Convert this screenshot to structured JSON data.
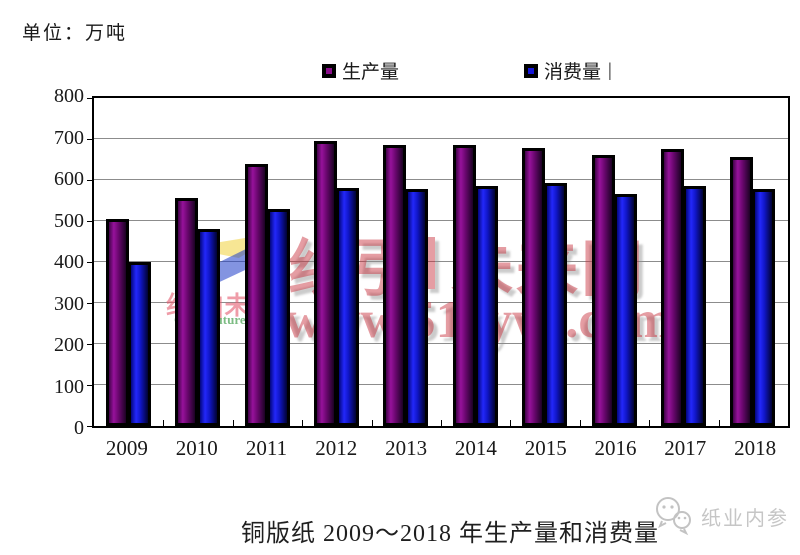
{
  "unit_label": "单位：万吨",
  "ui": {
    "legend_cursor": "|"
  },
  "watermark": {
    "name_part1": "纸引",
    "name_part2": "未来网",
    "url": "www.51zywl.com",
    "logo_text": "纸引|未来",
    "logo_subtext": "Guide future",
    "color": "#c52632"
  },
  "footer": {
    "brand": "纸业内参"
  },
  "chart_data": {
    "type": "bar",
    "title": "铜版纸 2009～2018 年生产量和消费量",
    "unit": "万吨",
    "categories": [
      "2009",
      "2010",
      "2011",
      "2012",
      "2013",
      "2014",
      "2015",
      "2016",
      "2017",
      "2018"
    ],
    "series": [
      {
        "name": "生产量",
        "key": "production",
        "color": "#8a0d8a",
        "values": [
          505,
          555,
          640,
          695,
          685,
          686,
          678,
          662,
          675,
          655
        ]
      },
      {
        "name": "消费量",
        "key": "consumption",
        "color": "#1515d8",
        "values": [
          400,
          481,
          530,
          580,
          577,
          586,
          593,
          565,
          586,
          578
        ]
      }
    ],
    "ylim": [
      0,
      800
    ],
    "ytick_interval": 100,
    "grid": true,
    "legend_position": "top"
  }
}
